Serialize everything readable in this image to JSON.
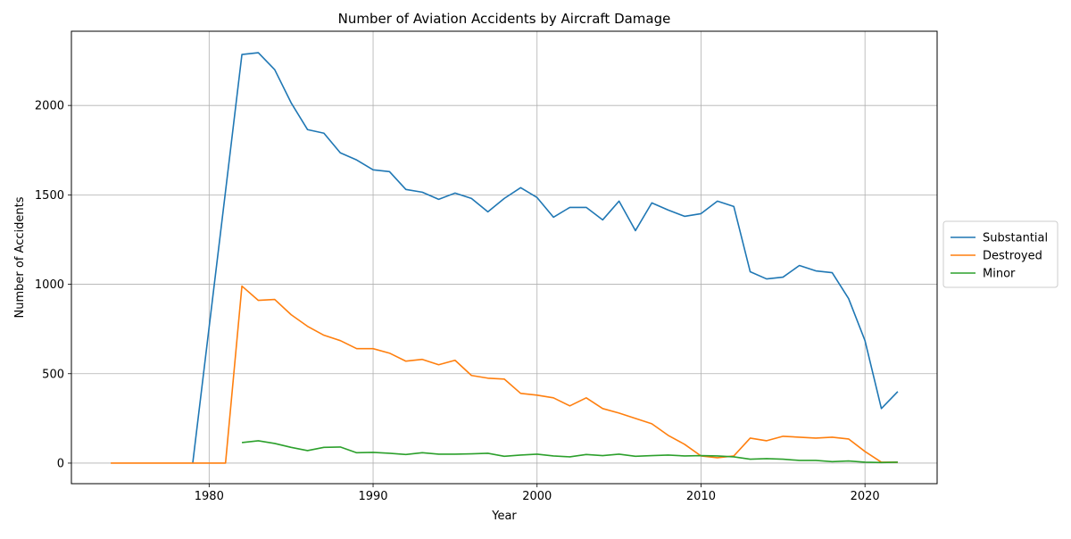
{
  "chart_data": {
    "type": "line",
    "title": "Number of Aviation Accidents by Aircraft Damage",
    "xlabel": "Year",
    "ylabel": "Number of Accidents",
    "xlim": [
      1971.6,
      2024.4
    ],
    "ylim": [
      -115,
      2415
    ],
    "xticks": [
      1980,
      1990,
      2000,
      2010,
      2020
    ],
    "yticks": [
      0,
      500,
      1000,
      1500,
      2000
    ],
    "grid": true,
    "legend_position": "right, outside plot",
    "series": [
      {
        "name": "Substantial",
        "color": "#1f77b4",
        "x": [
          1979,
          1980,
          1981,
          1982,
          1983,
          1984,
          1985,
          1986,
          1987,
          1988,
          1989,
          1990,
          1991,
          1992,
          1993,
          1994,
          1995,
          1996,
          1997,
          1998,
          1999,
          2000,
          2001,
          2002,
          2003,
          2004,
          2005,
          2006,
          2007,
          2008,
          2009,
          2010,
          2011,
          2012,
          2013,
          2014,
          2015,
          2016,
          2017,
          2018,
          2019,
          2020,
          2021,
          2022
        ],
        "values": [
          0,
          760,
          1520,
          2285,
          2295,
          2200,
          2015,
          1865,
          1845,
          1735,
          1695,
          1640,
          1630,
          1530,
          1515,
          1475,
          1510,
          1480,
          1405,
          1480,
          1540,
          1485,
          1375,
          1430,
          1430,
          1360,
          1465,
          1300,
          1455,
          1415,
          1380,
          1395,
          1465,
          1435,
          1070,
          1030,
          1040,
          1105,
          1075,
          1065,
          920,
          685,
          305,
          400
        ]
      },
      {
        "name": "Destroyed",
        "color": "#ff7f0e",
        "x": [
          1974,
          1975,
          1976,
          1977,
          1978,
          1979,
          1980,
          1981,
          1982,
          1983,
          1984,
          1985,
          1986,
          1987,
          1988,
          1989,
          1990,
          1991,
          1992,
          1993,
          1994,
          1995,
          1996,
          1997,
          1998,
          1999,
          2000,
          2001,
          2002,
          2003,
          2004,
          2005,
          2006,
          2007,
          2008,
          2009,
          2010,
          2011,
          2012,
          2013,
          2014,
          2015,
          2016,
          2017,
          2018,
          2019,
          2020,
          2021,
          2022
        ],
        "values": [
          0,
          0,
          0,
          0,
          0,
          0,
          0,
          0,
          990,
          910,
          915,
          830,
          765,
          715,
          685,
          640,
          640,
          615,
          570,
          580,
          550,
          575,
          490,
          475,
          470,
          390,
          380,
          365,
          320,
          365,
          305,
          280,
          250,
          220,
          155,
          105,
          40,
          30,
          40,
          140,
          125,
          150,
          145,
          140,
          145,
          135,
          65,
          5,
          5
        ]
      },
      {
        "name": "Minor",
        "color": "#2ca02c",
        "x": [
          1982,
          1983,
          1984,
          1985,
          1986,
          1987,
          1988,
          1989,
          1990,
          1991,
          1992,
          1993,
          1994,
          1995,
          1996,
          1997,
          1998,
          1999,
          2000,
          2001,
          2002,
          2003,
          2004,
          2005,
          2006,
          2007,
          2008,
          2009,
          2010,
          2011,
          2012,
          2013,
          2014,
          2015,
          2016,
          2017,
          2018,
          2019,
          2020,
          2021,
          2022
        ],
        "values": [
          115,
          125,
          110,
          88,
          70,
          88,
          90,
          58,
          60,
          55,
          48,
          58,
          50,
          50,
          52,
          55,
          38,
          45,
          50,
          40,
          35,
          48,
          42,
          50,
          38,
          42,
          45,
          40,
          42,
          40,
          35,
          22,
          25,
          22,
          15,
          15,
          8,
          12,
          5,
          3,
          5
        ]
      }
    ]
  }
}
